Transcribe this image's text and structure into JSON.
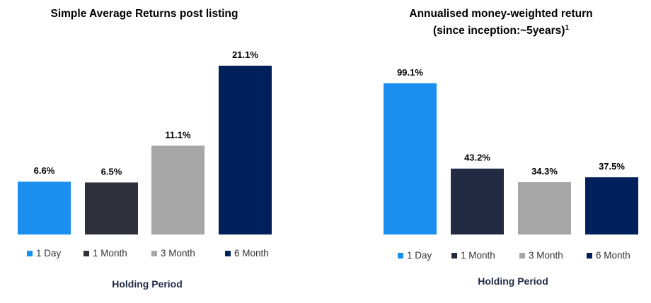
{
  "chart_data": [
    {
      "type": "bar",
      "title": "Simple Average Returns post listing",
      "xlabel": "Holding Period",
      "ylabel": "",
      "unit": "%",
      "categories": [
        "1 Day",
        "1 Month",
        "3 Month",
        "6 Month"
      ],
      "values": [
        6.6,
        6.5,
        11.1,
        21.1
      ],
      "value_labels": [
        "6.6%",
        "6.5%",
        "11.1%",
        "21.1%"
      ],
      "colors": [
        "#1a8fef",
        "#2f3039",
        "#a6a6a6",
        "#00205b"
      ],
      "ylim": [
        0,
        21.1
      ],
      "grid": false,
      "legend": "bottom"
    },
    {
      "type": "bar",
      "title": "Annualised money-weighted return",
      "subtitle": "(since inception:~5years)",
      "subtitle_superscript": "1",
      "xlabel": "Holding Period",
      "ylabel": "",
      "unit": "%",
      "categories": [
        "1 Day",
        "1 Month",
        "3 Month",
        "6 Month"
      ],
      "values": [
        99.1,
        43.2,
        34.3,
        37.5
      ],
      "value_labels": [
        "99.1%",
        "43.2%",
        "34.3%",
        "37.5%"
      ],
      "colors": [
        "#1a8fef",
        "#222b42",
        "#a6a6a6",
        "#00205b"
      ],
      "ylim": [
        0,
        99.1
      ],
      "grid": false,
      "legend": "bottom"
    }
  ]
}
